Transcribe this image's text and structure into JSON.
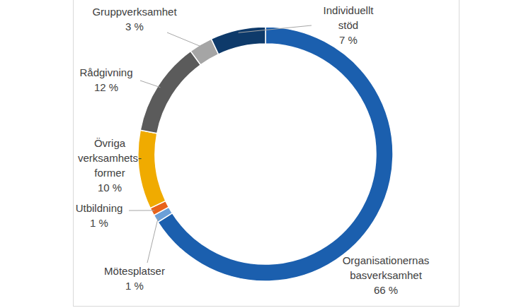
{
  "chart_data": {
    "type": "pie",
    "categories": [
      "Organisationernas\nbasverksamhet",
      "Mötesplatser",
      "Utbildning",
      "Övriga\nverksamhets-\nformer",
      "Rådgivning",
      "Gruppverksamhet",
      "Individuellt\nstöd"
    ],
    "values": [
      66,
      1,
      1,
      10,
      12,
      3,
      7
    ],
    "value_labels": [
      "66 %",
      "1 %",
      "1 %",
      "10 %",
      "12 %",
      "3 %",
      "7 %"
    ],
    "colors": [
      "#1b5fae",
      "#6b9fd8",
      "#e8621a",
      "#f0ab00",
      "#5b5b5b",
      "#a5a5a5",
      "#0e3a6a"
    ],
    "data_labels": true
  }
}
